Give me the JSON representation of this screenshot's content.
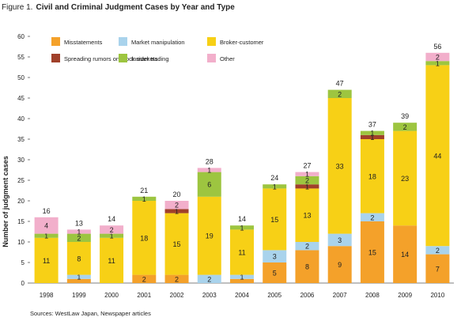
{
  "chart_data": {
    "type": "bar",
    "stacked": true,
    "figure_label": "Figure 1.",
    "title": "Civil and Criminal Judgment Cases by Year and Type",
    "ylabel": "Number of judgment cases",
    "xlabel": "",
    "ylim": [
      0,
      60
    ],
    "yticks": [
      0,
      5,
      10,
      15,
      20,
      25,
      30,
      35,
      40,
      45,
      50,
      55,
      60
    ],
    "grid": false,
    "legend_placement": "top-left",
    "source": "Sources: WestLaw Japan, Newspaper articles",
    "categories": [
      "1998",
      "1999",
      "2000",
      "2001",
      "2002",
      "2003",
      "2004",
      "2005",
      "2006",
      "2007",
      "2008",
      "2009",
      "2010"
    ],
    "series": [
      {
        "name": "Misstatements",
        "color": "#f4a12a",
        "values": [
          0,
          1,
          0,
          2,
          2,
          0,
          1,
          5,
          8,
          9,
          15,
          14,
          7
        ]
      },
      {
        "name": "Market manipulation",
        "color": "#a9d3ec",
        "values": [
          0,
          1,
          0,
          0,
          0,
          2,
          1,
          3,
          2,
          3,
          2,
          0,
          2
        ]
      },
      {
        "name": "Broker-customer",
        "color": "#f7d016",
        "values": [
          11,
          8,
          11,
          18,
          15,
          19,
          11,
          15,
          13,
          33,
          18,
          23,
          44
        ]
      },
      {
        "name": "Spreading rumors on stock markets",
        "color": "#a0402a",
        "values": [
          0,
          0,
          0,
          0,
          1,
          0,
          0,
          0,
          1,
          0,
          1,
          0,
          0
        ]
      },
      {
        "name": "Insider trading",
        "color": "#9dc540",
        "values": [
          1,
          2,
          1,
          1,
          0,
          6,
          1,
          1,
          2,
          2,
          1,
          2,
          1
        ]
      },
      {
        "name": "Other",
        "color": "#f2afcb",
        "values": [
          4,
          1,
          2,
          0,
          2,
          1,
          0,
          0,
          1,
          0,
          0,
          0,
          2
        ]
      }
    ],
    "totals": [
      16,
      13,
      14,
      21,
      20,
      28,
      14,
      24,
      27,
      47,
      37,
      39,
      56
    ],
    "segment_labels": [
      [
        "",
        "",
        "11",
        "",
        "1",
        "4"
      ],
      [
        "",
        "1",
        "8",
        "",
        "2",
        "1"
      ],
      [
        "",
        "",
        "11",
        "",
        "1",
        "2"
      ],
      [
        "2",
        "",
        "18",
        "",
        "1",
        ""
      ],
      [
        "2",
        "",
        "15",
        "1",
        "",
        "2"
      ],
      [
        "",
        "2",
        "19",
        "",
        "6",
        "1"
      ],
      [
        "",
        "1",
        "11",
        "",
        "1",
        ""
      ],
      [
        "5",
        "3",
        "15",
        "",
        "1",
        ""
      ],
      [
        "8",
        "2",
        "13",
        "1",
        "2",
        "1"
      ],
      [
        "9",
        "3",
        "33",
        "",
        "2",
        ""
      ],
      [
        "15",
        "2",
        "18",
        "1",
        "1",
        ""
      ],
      [
        "14",
        "",
        "23",
        "",
        "2",
        ""
      ],
      [
        "7",
        "2",
        "44",
        "",
        "1",
        "2"
      ]
    ]
  }
}
